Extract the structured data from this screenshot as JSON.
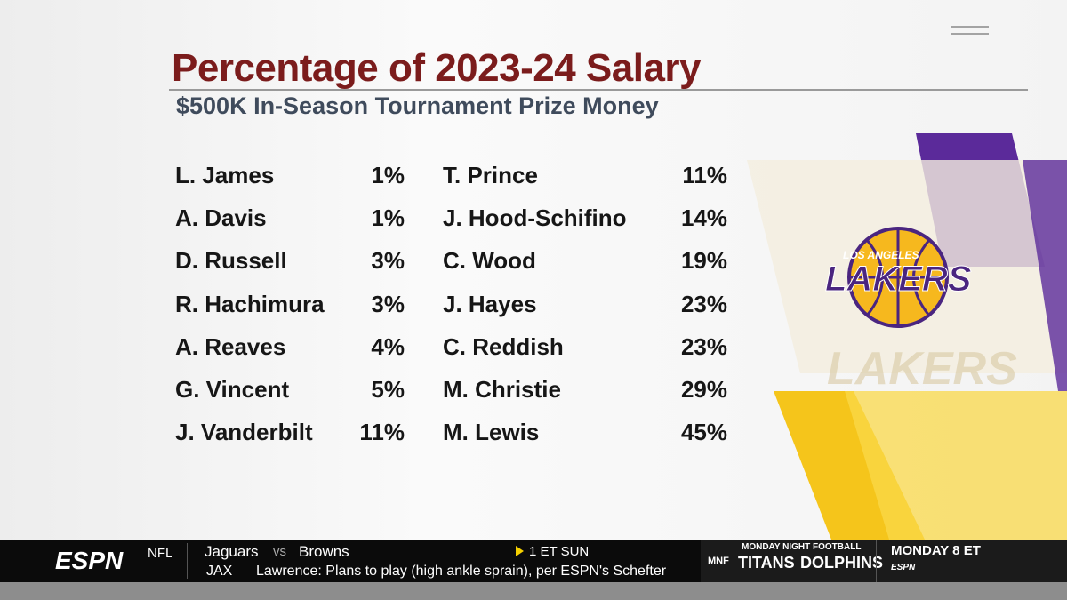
{
  "header": {
    "title": "Percentage of 2023-24 Salary",
    "subtitle": "$500K In-Season Tournament Prize Money"
  },
  "table": {
    "columns": [
      [
        [
          "L. James",
          "1%"
        ],
        [
          "A. Davis",
          "1%"
        ],
        [
          "D. Russell",
          "3%"
        ],
        [
          "R. Hachimura",
          "3%"
        ],
        [
          "A. Reaves",
          "4%"
        ],
        [
          "G. Vincent",
          "5%"
        ],
        [
          "J. Vanderbilt",
          "11%"
        ]
      ],
      [
        [
          "T. Prince",
          "11%"
        ],
        [
          "J. Hood-Schifino",
          "14%"
        ],
        [
          "C. Wood",
          "19%"
        ],
        [
          "J. Hayes",
          "23%"
        ],
        [
          "C. Reddish",
          "23%"
        ],
        [
          "M. Christie",
          "29%"
        ],
        [
          "M. Lewis",
          "45%"
        ]
      ]
    ]
  },
  "logo": {
    "top": "LOS ANGELES",
    "main": "LAKERS"
  },
  "ticker": {
    "network": "ESPN",
    "league": "NFL",
    "team1": "Jaguars",
    "vs": "vs",
    "team2": "Browns",
    "time": "1 ET SUN",
    "abbr": "JAX",
    "headline": "Lawrence: Plans to play (high ankle sprain), per ESPN's Schefter",
    "promo": {
      "badge": "MNF",
      "label": "MONDAY NIGHT FOOTBALL",
      "team1": "TITANS",
      "team2": "DOLPHINS",
      "time": "MONDAY 8 ET",
      "brand": "ESPN"
    }
  }
}
